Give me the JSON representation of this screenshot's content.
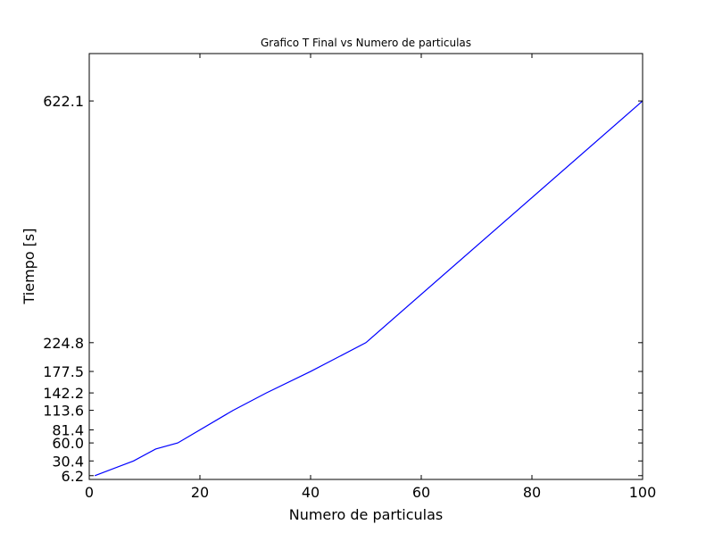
{
  "chart_data": {
    "type": "line",
    "title": "Grafico T Final vs Numero de particulas",
    "xlabel": "Numero de particulas",
    "ylabel": "Tiempo [s]",
    "xlim": [
      0,
      100
    ],
    "ylim": [
      0,
      700
    ],
    "xticks": [
      0,
      20,
      40,
      60,
      80,
      100
    ],
    "xtick_labels": [
      "0",
      "20",
      "40",
      "60",
      "80",
      "100"
    ],
    "yticks": [
      6.2,
      30.4,
      60.0,
      81.4,
      113.6,
      142.2,
      177.5,
      224.8,
      622.1
    ],
    "ytick_labels": [
      "6.2",
      "30.4",
      "60.0",
      "81.4",
      "113.6",
      "142.2",
      "177.5",
      "224.8",
      "622.1"
    ],
    "grid": false,
    "series": [
      {
        "color": "#0000ff",
        "x": [
          1,
          8,
          12,
          16,
          26,
          32,
          40,
          50,
          100
        ],
        "y": [
          6.2,
          30.4,
          50.0,
          60.0,
          113.6,
          142.2,
          177.5,
          224.8,
          622.1
        ]
      }
    ]
  }
}
